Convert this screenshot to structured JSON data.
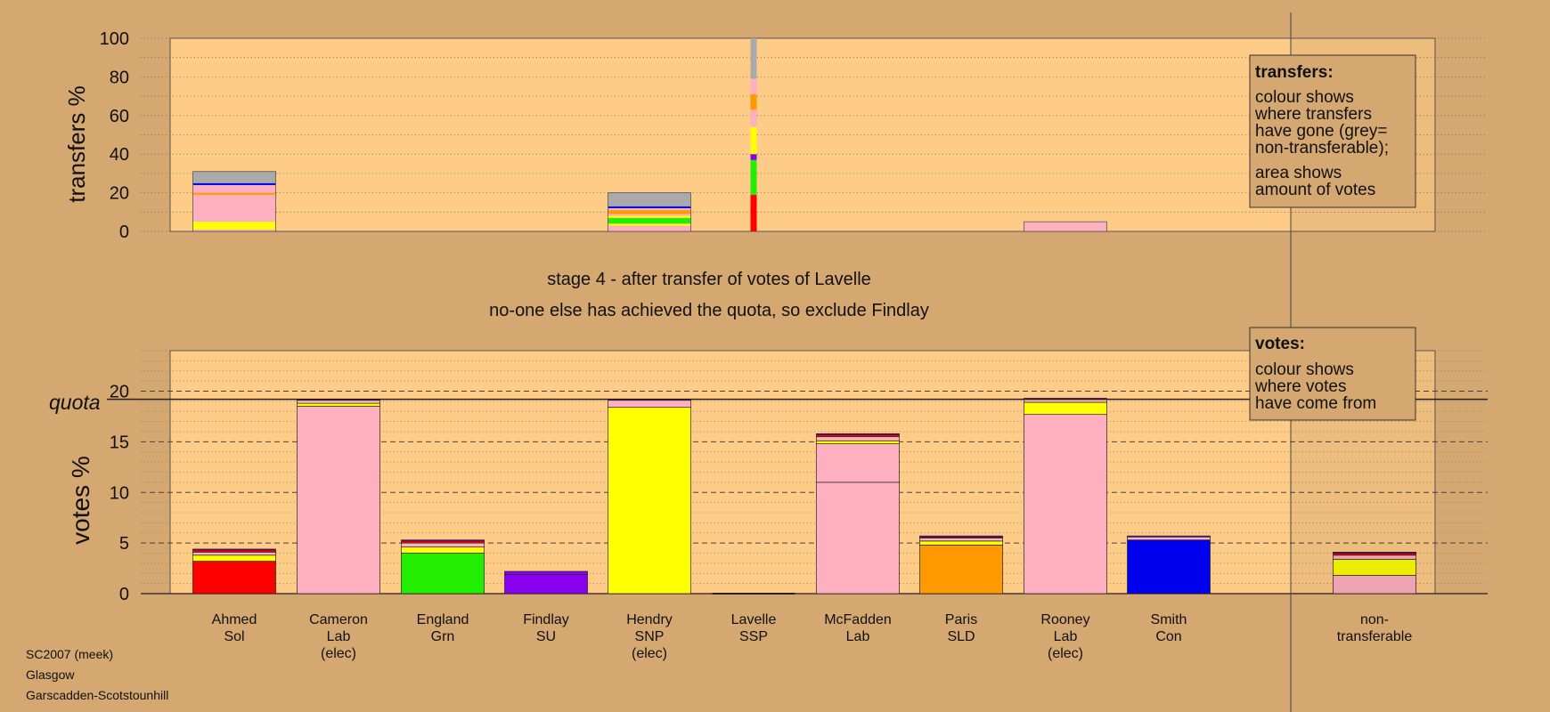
{
  "colors": {
    "background": "#d4a870",
    "panel": "#ffcc88",
    "Sol": "#ff0000",
    "Lab": "#ffb0c0",
    "Grn": "#22ee00",
    "SU": "#8800ee",
    "SNP": "#ffff00",
    "SSP": "#ff2222",
    "SLD": "#ff9900",
    "Con": "#0000ee",
    "non_transferable": "#aaaaaa"
  },
  "chart_data": [
    {
      "type": "bar",
      "stacked": true,
      "ylabel": "transfers %",
      "ylim": [
        0,
        100
      ],
      "yticks": [
        0,
        20,
        40,
        60,
        80,
        100
      ],
      "grid": true,
      "categories": [
        "Ahmed",
        "Cameron",
        "England",
        "Findlay",
        "Hendry",
        "Lavelle",
        "McFadden",
        "Paris",
        "Rooney",
        "Smith",
        "non-transferable"
      ],
      "series": [
        {
          "party": "Sol",
          "values": [
            0,
            0,
            0,
            0,
            0,
            19,
            0,
            0,
            0,
            0,
            0
          ]
        },
        {
          "party": "Lab",
          "values": [
            1,
            0,
            0,
            0,
            3,
            0,
            0,
            0,
            0,
            0,
            0
          ]
        },
        {
          "party": "Grn",
          "values": [
            0,
            0,
            0,
            0,
            0,
            18,
            0,
            0,
            0,
            0,
            0
          ]
        },
        {
          "party": "SU",
          "values": [
            0,
            0,
            0,
            0,
            0,
            3,
            0,
            0,
            0,
            0,
            0
          ]
        },
        {
          "party": "SNP",
          "values": [
            3,
            0,
            0,
            0,
            1,
            14,
            0,
            0,
            0,
            0,
            0
          ]
        },
        {
          "party": "Grn",
          "values": [
            0,
            0,
            0,
            0,
            3,
            0,
            0,
            0,
            0,
            0,
            0
          ]
        },
        {
          "party": "SNP",
          "values": [
            1,
            0,
            0,
            0,
            1,
            0,
            0,
            0,
            0,
            0,
            0
          ]
        },
        {
          "party": "Lab",
          "values": [
            14,
            0,
            0,
            0,
            1,
            9,
            0,
            0,
            5,
            0,
            0
          ]
        },
        {
          "party": "SLD",
          "values": [
            1,
            0,
            0,
            0,
            2,
            8,
            0,
            0,
            0,
            0,
            0
          ]
        },
        {
          "party": "Lab",
          "values": [
            4,
            0,
            0,
            0,
            1,
            8,
            0,
            0,
            0,
            0,
            0
          ]
        },
        {
          "party": "Con",
          "values": [
            1,
            0,
            0,
            0,
            1,
            0,
            0,
            0,
            0,
            0,
            0
          ]
        },
        {
          "party": "non_transferable",
          "values": [
            6,
            0,
            0,
            0,
            7,
            21,
            0,
            0,
            0,
            0,
            0
          ]
        }
      ]
    },
    {
      "type": "bar",
      "stacked": true,
      "ylabel": "votes %",
      "ylim": [
        0,
        24
      ],
      "yticks": [
        0,
        5,
        10,
        15,
        20
      ],
      "quota": 19.2,
      "quota_label": "quota",
      "grid": true,
      "categories": [
        "Ahmed",
        "Cameron",
        "England",
        "Findlay",
        "Hendry",
        "Lavelle",
        "McFadden",
        "Paris",
        "Rooney",
        "Smith",
        "non-transferable"
      ],
      "series": [
        {
          "party": "Sol",
          "values": [
            3.2,
            0,
            0,
            0,
            0,
            0,
            0,
            0,
            0,
            0,
            0
          ]
        },
        {
          "party": "Lab",
          "values": [
            0,
            18.5,
            0,
            0,
            0,
            0,
            11.0,
            0,
            17.7,
            0,
            1.8
          ]
        },
        {
          "party": "Lab",
          "values": [
            0,
            0,
            0,
            0,
            0,
            0,
            3.8,
            0,
            0,
            0,
            0
          ]
        },
        {
          "party": "Grn",
          "values": [
            0,
            0,
            4.0,
            0,
            0,
            0,
            0,
            0,
            0,
            0,
            0
          ]
        },
        {
          "party": "SU",
          "values": [
            0,
            0,
            0,
            1.9,
            0,
            0,
            0,
            0,
            0,
            0,
            0
          ]
        },
        {
          "party": "SNP",
          "values": [
            0,
            0,
            0,
            0,
            18.4,
            0,
            0,
            0,
            0,
            0,
            0
          ]
        },
        {
          "party": "SLD",
          "values": [
            0,
            0,
            0,
            0,
            0,
            0,
            0,
            4.8,
            0,
            0,
            0
          ]
        },
        {
          "party": "Con",
          "values": [
            0,
            0,
            0,
            0,
            0,
            0,
            0,
            0,
            0,
            5.3,
            0
          ]
        },
        {
          "party": "SNP",
          "values": [
            0.6,
            0.3,
            0.6,
            0,
            0,
            0,
            0.3,
            0.4,
            1.2,
            0,
            1.6
          ]
        },
        {
          "party": "Lab",
          "values": [
            0.3,
            0.3,
            0.4,
            0,
            0.7,
            0,
            0.4,
            0.3,
            0.3,
            0.3,
            0.4
          ]
        },
        {
          "party": "Sol",
          "values": [
            0.2,
            0,
            0.2,
            0,
            0,
            0,
            0.2,
            0.1,
            0,
            0,
            0.2
          ]
        },
        {
          "party": "SU",
          "values": [
            0.1,
            0.1,
            0.1,
            0.3,
            0.1,
            0,
            0.1,
            0.1,
            0.1,
            0.1,
            0.1
          ]
        }
      ]
    }
  ],
  "candidates": [
    {
      "name": "Ahmed",
      "party": "Sol",
      "status": ""
    },
    {
      "name": "Cameron",
      "party": "Lab",
      "status": "(elec)"
    },
    {
      "name": "England",
      "party": "Grn",
      "status": ""
    },
    {
      "name": "Findlay",
      "party": "SU",
      "status": ""
    },
    {
      "name": "Hendry",
      "party": "SNP",
      "status": "(elec)"
    },
    {
      "name": "Lavelle",
      "party": "SSP",
      "status": ""
    },
    {
      "name": "McFadden",
      "party": "Lab",
      "status": ""
    },
    {
      "name": "Paris",
      "party": "SLD",
      "status": ""
    },
    {
      "name": "Rooney",
      "party": "Lab",
      "status": "(elec)"
    },
    {
      "name": "Smith",
      "party": "Con",
      "status": ""
    },
    {
      "name": "non-",
      "party": "transferable",
      "status": ""
    }
  ],
  "stage_title": "stage 4 - after transfer of votes of Lavelle",
  "stage_subtitle": "no-one else has achieved the quota, so exclude Findlay",
  "transfers_legend": {
    "title": "transfers:",
    "lines1": [
      "colour shows",
      "where transfers",
      "have gone (grey=",
      "non-transferable);"
    ],
    "lines2": [
      "area shows",
      "amount of votes"
    ]
  },
  "votes_legend": {
    "title": "votes:",
    "lines": [
      "colour shows",
      "where votes",
      "have come from"
    ]
  },
  "footer": {
    "line1": "SC2007 (meek)",
    "line2": "Glasgow",
    "line3": "Garscadden-Scotstounhill"
  }
}
